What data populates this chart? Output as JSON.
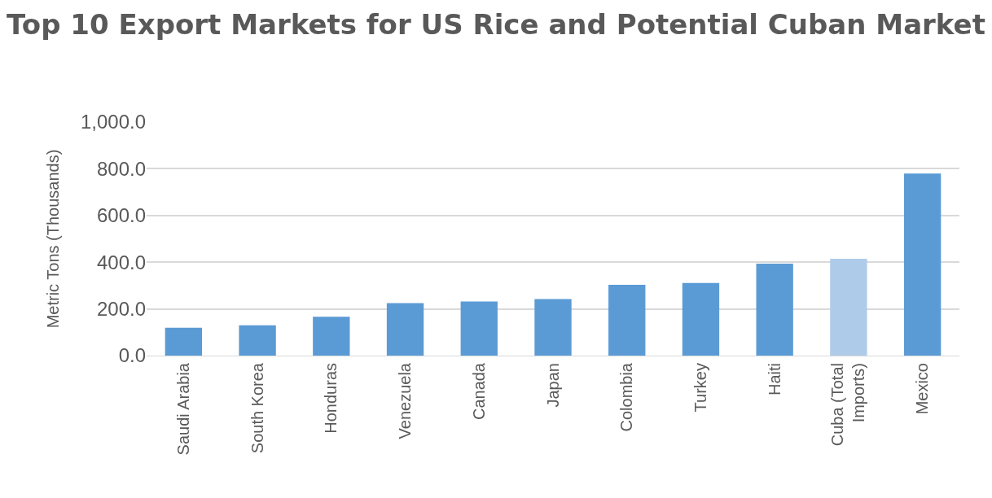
{
  "chart_data": {
    "type": "bar",
    "title": "Top 10 Export Markets for US Rice and Potential Cuban Market",
    "ylabel": "Metric Tons (Thousands)",
    "categories": [
      "Saudi Arabia",
      "South Korea",
      "Honduras",
      "Venezuela",
      "Canada",
      "Japan",
      "Colombia",
      "Turkey",
      "Haiti",
      "Cuba (Total Imports)",
      "Mexico"
    ],
    "values": [
      119,
      130,
      166,
      225,
      232,
      242,
      303,
      311,
      394,
      415,
      780
    ],
    "colors": [
      "#5b9bd5",
      "#5b9bd5",
      "#5b9bd5",
      "#5b9bd5",
      "#5b9bd5",
      "#5b9bd5",
      "#5b9bd5",
      "#5b9bd5",
      "#5b9bd5",
      "#aecbea",
      "#5b9bd5"
    ],
    "ylim": [
      0,
      1000
    ],
    "yticks": [
      {
        "value": 0,
        "label": "0.0"
      },
      {
        "value": 200,
        "label": "200.0"
      },
      {
        "value": 400,
        "label": "400.0"
      },
      {
        "value": 600,
        "label": "600.0"
      },
      {
        "value": 800,
        "label": "800.0"
      },
      {
        "value": 1000,
        "label": "1,000.0"
      }
    ],
    "grid": "y",
    "legend": false
  }
}
